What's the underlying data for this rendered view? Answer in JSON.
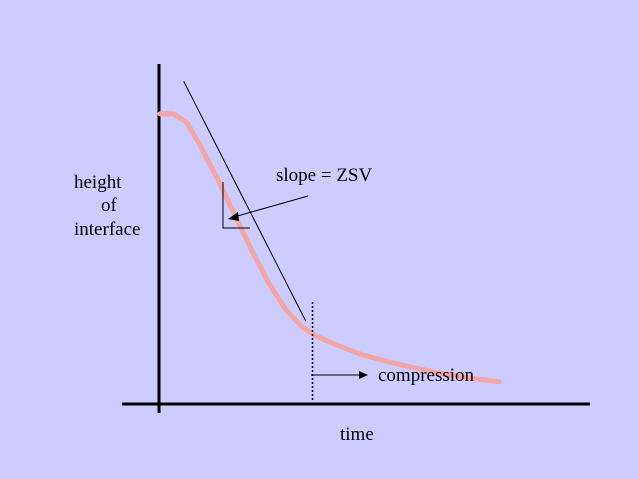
{
  "chart_data": {
    "type": "line",
    "ylabel_lines": [
      "height",
      "of",
      "interface"
    ],
    "xlabel": "time",
    "annotations": {
      "slope": "slope = ZSV",
      "compression": "compression"
    },
    "series": [
      {
        "x": [
          0.0,
          0.04,
          0.08,
          0.12,
          0.17,
          0.22,
          0.27,
          0.32,
          0.37,
          0.42,
          0.46,
          0.52,
          0.6,
          0.7,
          0.8,
          0.9,
          1.0
        ],
        "y": [
          0.98,
          0.98,
          0.95,
          0.87,
          0.76,
          0.64,
          0.52,
          0.41,
          0.32,
          0.26,
          0.23,
          0.2,
          0.165,
          0.135,
          0.11,
          0.09,
          0.075
        ]
      }
    ],
    "tangent_line": {
      "x": [
        0.07,
        0.43
      ],
      "y": [
        1.09,
        0.28
      ]
    },
    "compression_point_x": 0.45,
    "colors": {
      "background": "#ccccff",
      "curve": "#f4a6a6",
      "axes": "#000000"
    }
  }
}
